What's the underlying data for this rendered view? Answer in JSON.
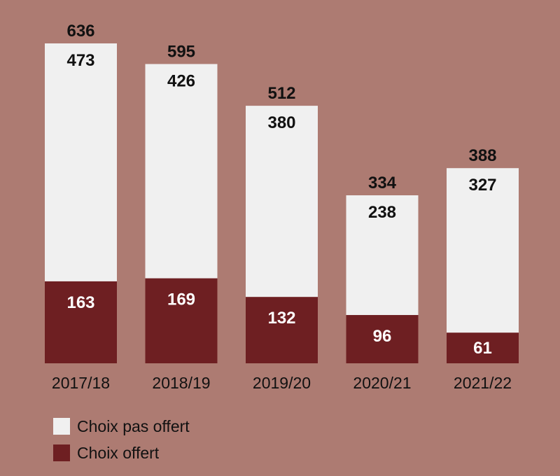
{
  "chart_data": {
    "type": "bar",
    "stacked": true,
    "categories": [
      "2017/18",
      "2018/19",
      "2019/20",
      "2020/21",
      "2021/22"
    ],
    "totals": [
      636,
      595,
      512,
      334,
      388
    ],
    "series": [
      {
        "name": "Choix offert",
        "values": [
          163,
          169,
          132,
          96,
          61
        ],
        "color": "#6e1f22"
      },
      {
        "name": "Choix pas offert",
        "values": [
          473,
          426,
          380,
          238,
          327
        ],
        "color": "#f0f0f0"
      }
    ],
    "ylim": [
      0,
      636
    ],
    "grid": false,
    "legend_position": "bottom-left"
  },
  "legend": {
    "items": [
      {
        "label": "Choix pas offert",
        "color": "#f0f0f0"
      },
      {
        "label": "Choix offert",
        "color": "#6e1f22"
      }
    ]
  }
}
